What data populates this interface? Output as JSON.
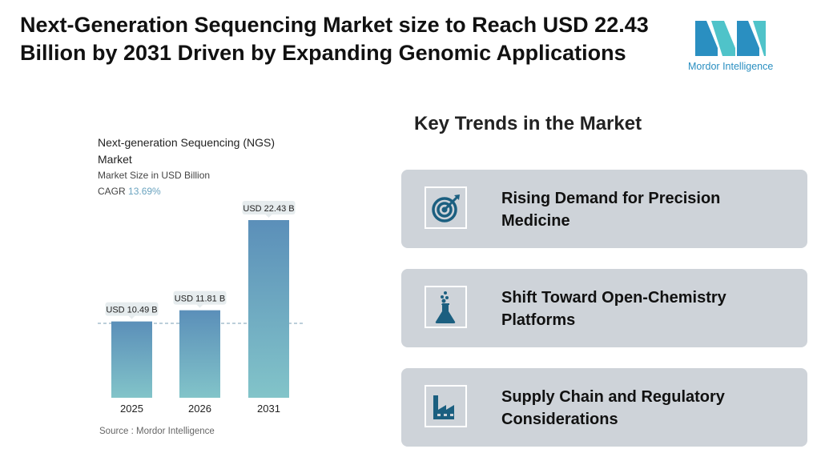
{
  "title": "Next-Generation Sequencing Market size to Reach USD 22.43 Billion by 2031 Driven by Expanding Genomic Applications",
  "logo": {
    "text": "Mordor Intelligence",
    "colors": [
      "#2a8fc1",
      "#4fc3c9"
    ]
  },
  "chart_data": {
    "type": "bar",
    "title": "Next-generation Sequencing (NGS) Market",
    "subtitle": "Market Size in USD Billion",
    "cagr_label": "CAGR",
    "cagr_value": "13.69%",
    "categories": [
      "2025",
      "2026",
      "2031"
    ],
    "values": [
      10.49,
      11.81,
      22.43
    ],
    "data_labels": [
      "USD 10.49 B",
      "USD 11.81 B",
      "USD 22.43 B"
    ],
    "grid": false,
    "bar_gradient": [
      "#5b8fb9",
      "#82c4c9"
    ],
    "source": "Source :  Mordor Intelligence"
  },
  "trends": {
    "heading": "Key Trends in the Market",
    "items": [
      {
        "label": "Rising Demand for Precision Medicine",
        "icon": "target-icon"
      },
      {
        "label": "Shift Toward Open-Chemistry Platforms",
        "icon": "flask-icon"
      },
      {
        "label": "Supply Chain and Regulatory Considerations",
        "icon": "factory-icon"
      }
    ],
    "icon_color": "#1b5f80"
  }
}
